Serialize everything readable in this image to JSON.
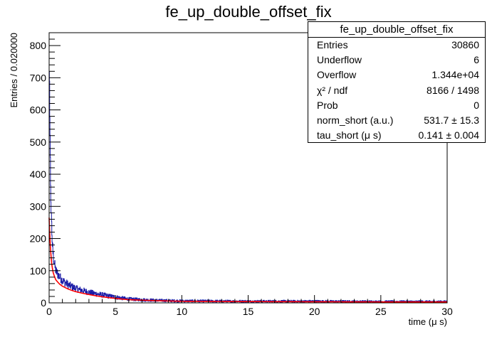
{
  "chart_data": {
    "type": "histogram",
    "title": "fe_up_double_offset_fix",
    "xlabel": "time (μ s)",
    "ylabel": "Entries / 0.020000",
    "xlim": [
      0,
      30
    ],
    "ylim": [
      0,
      840
    ],
    "x_ticks": [
      "0",
      "5",
      "10",
      "15",
      "20",
      "25",
      "30"
    ],
    "y_ticks": [
      "0",
      "100",
      "200",
      "300",
      "400",
      "500",
      "600",
      "700",
      "800"
    ],
    "bin_width": 0.02,
    "histogram_color": "#1a1aa6",
    "fit_color": "#ff0000",
    "histogram_envelope": [
      {
        "x": 0.0,
        "y": 790
      },
      {
        "x": 0.1,
        "y": 400
      },
      {
        "x": 0.2,
        "y": 220
      },
      {
        "x": 0.3,
        "y": 150
      },
      {
        "x": 0.5,
        "y": 100
      },
      {
        "x": 1.0,
        "y": 70
      },
      {
        "x": 1.5,
        "y": 55
      },
      {
        "x": 2.0,
        "y": 45
      },
      {
        "x": 3.0,
        "y": 33
      },
      {
        "x": 4.0,
        "y": 25
      },
      {
        "x": 5.0,
        "y": 18
      },
      {
        "x": 6.0,
        "y": 12
      },
      {
        "x": 8.0,
        "y": 8
      },
      {
        "x": 10.0,
        "y": 6
      },
      {
        "x": 15.0,
        "y": 5
      },
      {
        "x": 20.0,
        "y": 5
      },
      {
        "x": 25.0,
        "y": 4
      },
      {
        "x": 30.0,
        "y": 4
      }
    ],
    "fit_curve": [
      {
        "x": 0.0,
        "y": 265
      },
      {
        "x": 0.1,
        "y": 170
      },
      {
        "x": 0.2,
        "y": 120
      },
      {
        "x": 0.3,
        "y": 95
      },
      {
        "x": 0.5,
        "y": 72
      },
      {
        "x": 0.8,
        "y": 58
      },
      {
        "x": 1.0,
        "y": 52
      },
      {
        "x": 1.5,
        "y": 42
      },
      {
        "x": 2.0,
        "y": 35
      },
      {
        "x": 3.0,
        "y": 26
      },
      {
        "x": 4.0,
        "y": 19
      },
      {
        "x": 5.0,
        "y": 14
      },
      {
        "x": 6.0,
        "y": 10
      },
      {
        "x": 8.0,
        "y": 7
      },
      {
        "x": 10.0,
        "y": 5
      },
      {
        "x": 15.0,
        "y": 4
      },
      {
        "x": 20.0,
        "y": 3.5
      },
      {
        "x": 25.0,
        "y": 3
      },
      {
        "x": 30.0,
        "y": 3
      }
    ],
    "stats_box": {
      "title": "fe_up_double_offset_fix",
      "rows": [
        {
          "label": "Entries",
          "value": "30860"
        },
        {
          "label": "Underflow",
          "value": "6"
        },
        {
          "label": "Overflow",
          "value": "1.344e+04"
        },
        {
          "label": "χ² / ndf",
          "value": "8166 / 1498"
        },
        {
          "label": "Prob",
          "value": "0"
        },
        {
          "label": "norm_short (a.u.)",
          "value": "531.7 ± 15.3"
        },
        {
          "label": "tau_short (μ s)",
          "value": "0.141 ± 0.004"
        }
      ]
    }
  }
}
